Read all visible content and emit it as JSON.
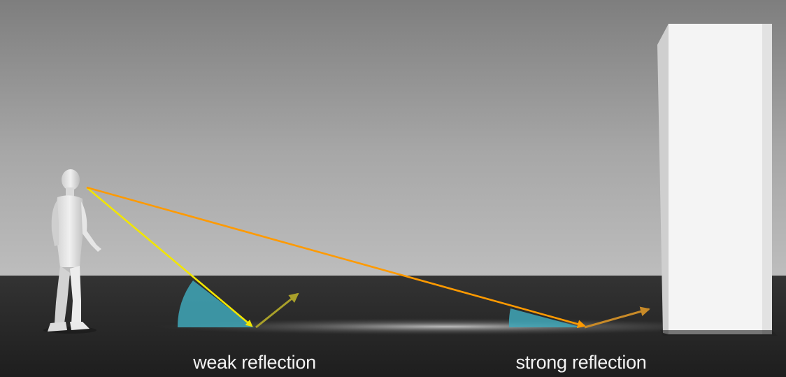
{
  "labels": {
    "weak": "weak reflection",
    "strong": "strong reflection"
  },
  "colors": {
    "near_ray": "#f2e600",
    "near_reflected_ray": "#a9a02a",
    "far_ray": "#ff9a00",
    "far_reflected_ray": "#c88a28",
    "angle_wedge": "#3fa7b8",
    "building": "#f4f4f4",
    "ground": "#262626"
  },
  "icons": {
    "person": "standing-person-figure",
    "building": "tall-building-block"
  }
}
